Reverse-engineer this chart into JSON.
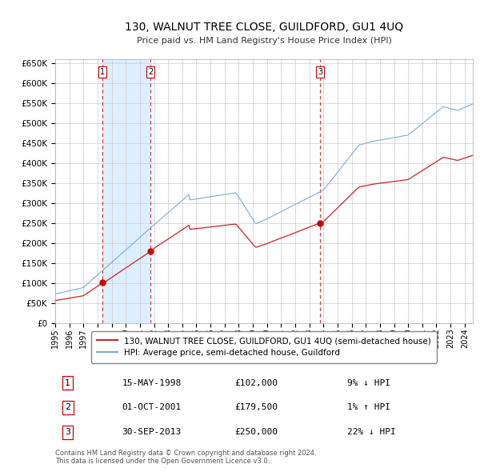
{
  "title": "130, WALNUT TREE CLOSE, GUILDFORD, GU1 4UQ",
  "subtitle": "Price paid vs. HM Land Registry's House Price Index (HPI)",
  "ylim": [
    0,
    660000
  ],
  "yticks": [
    0,
    50000,
    100000,
    150000,
    200000,
    250000,
    300000,
    350000,
    400000,
    450000,
    500000,
    550000,
    600000,
    650000
  ],
  "xlim_start": 1995.0,
  "xlim_end": 2024.58,
  "background_color": "#ffffff",
  "plot_bg_color": "#ffffff",
  "grid_color": "#cccccc",
  "hpi_line_color": "#7aadda",
  "price_line_color": "#cc2222",
  "shade_color": "#ddeeff",
  "vline_color": "#cc3333",
  "purchases": [
    {
      "label": "1",
      "date_year": 1998.37,
      "price": 102000
    },
    {
      "label": "2",
      "date_year": 2001.75,
      "price": 179500
    },
    {
      "label": "3",
      "date_year": 2013.75,
      "price": 250000
    }
  ],
  "legend_label_price": "130, WALNUT TREE CLOSE, GUILDFORD, GU1 4UQ (semi-detached house)",
  "legend_label_hpi": "HPI: Average price, semi-detached house, Guildford",
  "footer": "Contains HM Land Registry data © Crown copyright and database right 2024.\nThis data is licensed under the Open Government Licence v3.0.",
  "table_rows": [
    [
      "1",
      "15-MAY-1998",
      "£102,000",
      "9% ↓ HPI"
    ],
    [
      "2",
      "01-OCT-2001",
      "£179,500",
      "1% ↑ HPI"
    ],
    [
      "3",
      "30-SEP-2013",
      "£250,000",
      "22% ↓ HPI"
    ]
  ]
}
